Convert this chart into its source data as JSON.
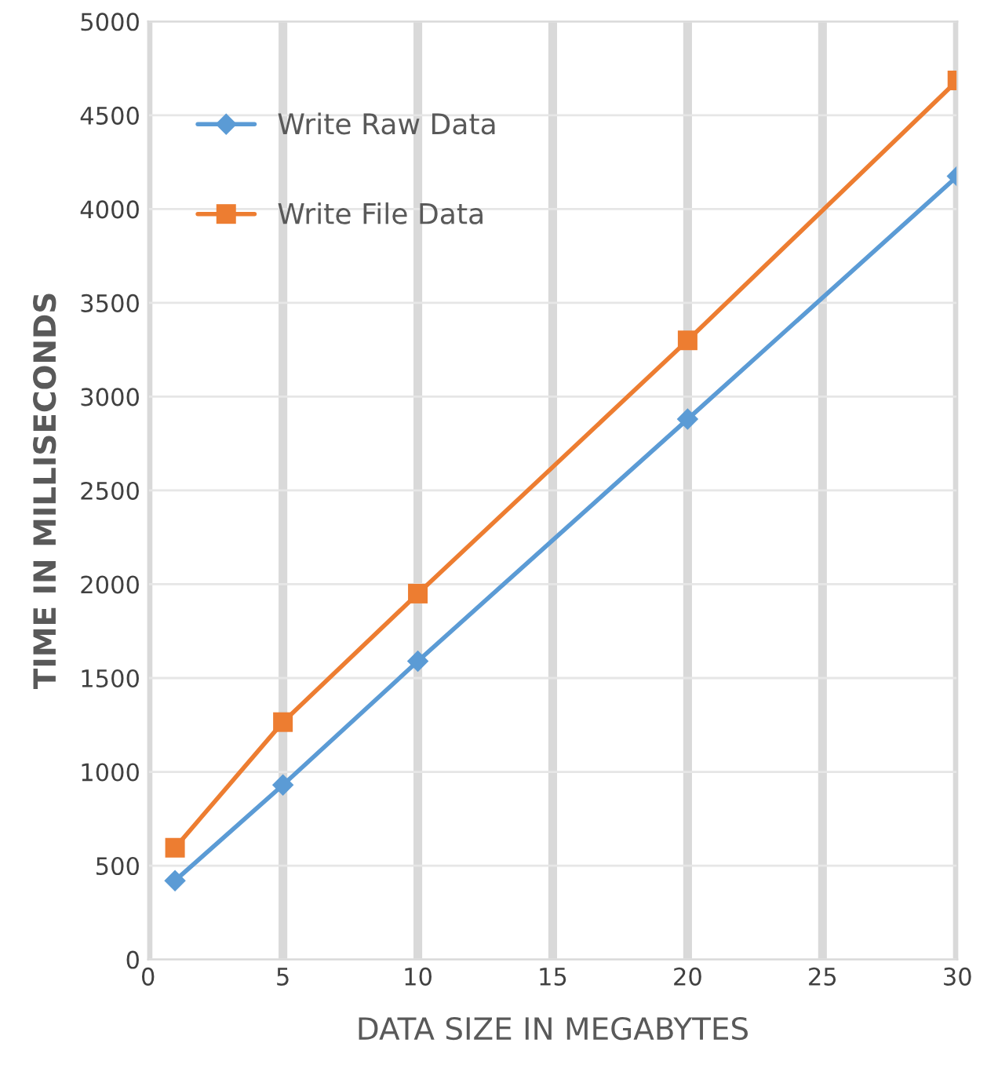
{
  "chart_data": {
    "type": "line",
    "xlabel": "DATA SIZE IN MEGABYTES",
    "ylabel": "TIME IN MILLISECONDS",
    "x": [
      1,
      5,
      10,
      20,
      30
    ],
    "series": [
      {
        "name": "Write Raw Data",
        "color": "#5b9bd5",
        "values": [
          420,
          930,
          1590,
          2880,
          4175
        ],
        "marker": "diamond"
      },
      {
        "name": "Write File Data",
        "color": "#ed7d31",
        "values": [
          595,
          1265,
          1950,
          3300,
          4685
        ],
        "marker": "square"
      }
    ],
    "xlim": [
      0,
      30
    ],
    "xticks": [
      0,
      5,
      10,
      15,
      20,
      25,
      30
    ],
    "ylim": [
      0,
      5000
    ],
    "yticks": [
      0,
      500,
      1000,
      1500,
      2000,
      2500,
      3000,
      3500,
      4000,
      4500,
      5000
    ],
    "grid": true,
    "legend": "top left",
    "line_style": "solid"
  }
}
